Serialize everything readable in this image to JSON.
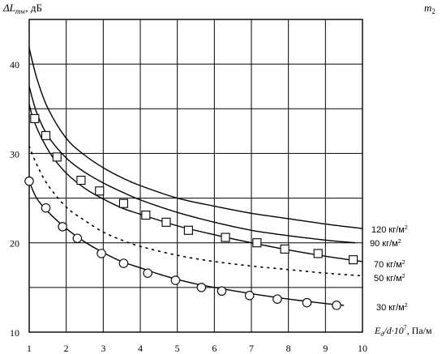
{
  "chart_data": {
    "type": "line",
    "ylabel": "ΔL, дБ",
    "ylabel_main": "ΔL",
    "ylabel_sub": "mw",
    "ylabel_unit": ", дБ",
    "xlabel": "Eд/d·10⁷, Па/м",
    "xlabel_main": "E",
    "xlabel_sub": "д",
    "xlabel_mid": "/d·10",
    "xlabel_sup": "7",
    "xlabel_unit": ",  Па/м",
    "legend_title": "m",
    "legend_title_sub": "2",
    "xlim": [
      1,
      10
    ],
    "ylim": [
      10,
      45
    ],
    "x_ticks": [
      1,
      2,
      3,
      4,
      5,
      6,
      7,
      8,
      9,
      10
    ],
    "y_ticks": [
      10,
      20,
      30,
      40
    ],
    "x_tick_labels": [
      "1",
      "2",
      "3",
      "4",
      "5",
      "6",
      "7",
      "8",
      "9",
      "10"
    ],
    "y_tick_labels": [
      "10",
      "20",
      "30",
      "40"
    ],
    "grid": true,
    "series": [
      {
        "name": "120 кг/м²",
        "label_main": "120 кг/м",
        "label_sup": "2",
        "style": "solid",
        "marker": "none",
        "x": [
          1.0,
          1.2,
          1.5,
          2.0,
          2.5,
          3.0,
          3.5,
          4.0,
          5.0,
          6.0,
          7.0,
          8.0,
          9.0,
          10.0
        ],
        "y": [
          41.8,
          38.5,
          35.1,
          31.7,
          29.8,
          28.4,
          27.3,
          26.4,
          25.0,
          24.1,
          23.3,
          22.7,
          22.1,
          21.6
        ]
      },
      {
        "name": "90 кг/м²",
        "label_main": "90 кг/м",
        "label_sup": "2",
        "style": "solid",
        "marker": "none",
        "x": [
          1.0,
          1.2,
          1.5,
          2.0,
          2.5,
          3.0,
          3.5,
          4.0,
          5.0,
          6.0,
          7.0,
          8.0,
          9.0,
          9.8
        ],
        "y": [
          37.5,
          34.6,
          32.0,
          29.5,
          27.9,
          26.7,
          25.7,
          24.8,
          23.4,
          22.3,
          21.4,
          20.8,
          20.3,
          20.0
        ]
      },
      {
        "name": "70 кг/м²",
        "label_main": "70 кг/м",
        "label_sup": "2",
        "style": "solid",
        "marker": "square",
        "x": [
          1.0,
          1.1,
          1.3,
          1.6,
          2.0,
          2.5,
          3.0,
          3.5,
          4.0,
          5.0,
          6.0,
          7.0,
          8.0,
          9.0,
          10.0
        ],
        "y": [
          35.5,
          34.0,
          32.0,
          29.8,
          27.8,
          26.1,
          24.9,
          23.9,
          23.2,
          21.9,
          20.9,
          20.0,
          19.2,
          18.5,
          17.9
        ],
        "markers_x": [
          1.15,
          1.45,
          1.75,
          2.4,
          2.9,
          3.55,
          4.15,
          4.7,
          5.3,
          6.3,
          7.15,
          7.9,
          8.8,
          9.75
        ],
        "markers_y": [
          33.9,
          32.0,
          29.6,
          27.0,
          25.8,
          24.4,
          23.1,
          22.3,
          21.4,
          20.6,
          20.0,
          19.3,
          18.8,
          18.1
        ]
      },
      {
        "name": "50 кг/м²",
        "label_main": "50 кг/м",
        "label_sup": "2",
        "style": "dotted",
        "marker": "none",
        "x": [
          1.0,
          1.2,
          1.5,
          2.0,
          2.5,
          3.0,
          3.5,
          4.0,
          5.0,
          6.0,
          7.0,
          8.0,
          9.0,
          10.0
        ],
        "y": [
          30.8,
          28.8,
          26.5,
          24.0,
          22.5,
          21.2,
          20.3,
          19.6,
          18.6,
          17.9,
          17.4,
          17.0,
          16.6,
          16.3
        ]
      },
      {
        "name": "30 кг/м²",
        "label_main": "30 кг/м",
        "label_sup": "2",
        "style": "solid",
        "marker": "circle",
        "x": [
          1.0,
          1.2,
          1.5,
          2.0,
          2.5,
          3.0,
          3.5,
          4.0,
          4.5,
          5.0,
          5.5,
          6.0,
          7.0,
          8.0,
          9.0,
          9.5
        ],
        "y": [
          26.9,
          25.0,
          23.5,
          21.6,
          20.1,
          18.9,
          17.9,
          17.2,
          16.5,
          15.9,
          15.4,
          15.0,
          14.3,
          13.7,
          13.2,
          13.0
        ],
        "markers_x": [
          1.0,
          1.45,
          1.9,
          2.3,
          2.95,
          3.55,
          4.2,
          4.95,
          5.65,
          6.2,
          6.95,
          7.7,
          8.5,
          9.3
        ],
        "markers_y": [
          26.9,
          23.9,
          21.8,
          20.5,
          18.8,
          17.7,
          16.6,
          15.8,
          15.0,
          14.6,
          14.1,
          13.7,
          13.3,
          13.0
        ]
      }
    ]
  }
}
